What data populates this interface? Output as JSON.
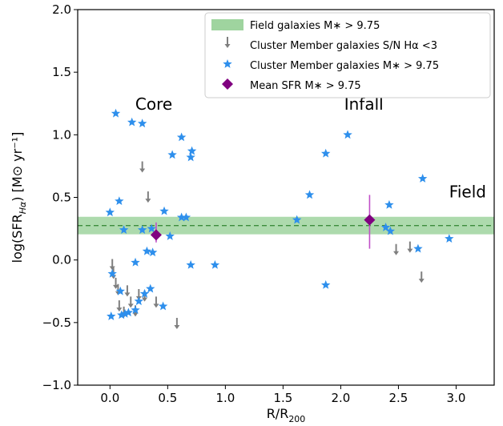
{
  "chart_data": {
    "type": "scatter",
    "xlabel": "R/R",
    "xlabel_sub": "200",
    "ylabel": "log(SFR",
    "ylabel_sub": "Hα",
    "ylabel_units": ") [M⊙ yr⁻¹]",
    "xlim": [
      -0.28,
      3.33
    ],
    "ylim": [
      -1.0,
      2.0
    ],
    "xticks": [
      0.0,
      0.5,
      1.0,
      1.5,
      2.0,
      2.5,
      3.0
    ],
    "xtick_labels": [
      "0.0",
      "0.5",
      "1.0",
      "1.5",
      "2.0",
      "2.5",
      "3.0"
    ],
    "yticks": [
      -1.0,
      -0.5,
      0.0,
      0.5,
      1.0,
      1.5,
      2.0
    ],
    "ytick_labels": [
      "−1.0",
      "−0.5",
      "0.0",
      "0.5",
      "1.0",
      "1.5",
      "2.0"
    ],
    "grid": false,
    "legend_position": "top-right",
    "region_labels": [
      {
        "text": "Core",
        "x": 0.38,
        "y": 1.2
      },
      {
        "text": "Infall",
        "x": 2.2,
        "y": 1.2
      },
      {
        "text": "Field",
        "x": 3.1,
        "y": 0.5
      }
    ],
    "series": [
      {
        "name": "Field galaxies M∗ > 9.75",
        "kind": "band",
        "color": "#9fd49f",
        "y_center": 0.275,
        "y_low": 0.205,
        "y_high": 0.345,
        "line_color": "#3c8c3c"
      },
      {
        "name": "Cluster Member galaxies S/N Hα <3",
        "kind": "upper_limit",
        "color": "#7f7f7f",
        "points": [
          {
            "x": 0.02,
            "y": -0.05
          },
          {
            "x": 0.03,
            "y": -0.12
          },
          {
            "x": 0.05,
            "y": -0.2
          },
          {
            "x": 0.07,
            "y": -0.25
          },
          {
            "x": 0.08,
            "y": -0.38
          },
          {
            "x": 0.12,
            "y": -0.43
          },
          {
            "x": 0.15,
            "y": -0.26
          },
          {
            "x": 0.18,
            "y": -0.35
          },
          {
            "x": 0.22,
            "y": -0.42
          },
          {
            "x": 0.25,
            "y": -0.29
          },
          {
            "x": 0.28,
            "y": 0.73
          },
          {
            "x": 0.3,
            "y": -0.3
          },
          {
            "x": 0.33,
            "y": 0.49
          },
          {
            "x": 0.4,
            "y": -0.35
          },
          {
            "x": 0.58,
            "y": -0.52
          },
          {
            "x": 2.48,
            "y": 0.07
          },
          {
            "x": 2.6,
            "y": 0.09
          },
          {
            "x": 2.7,
            "y": -0.15
          }
        ]
      },
      {
        "name": "Cluster Member galaxies M∗ > 9.75",
        "kind": "star",
        "color": "#2e8fec",
        "points": [
          {
            "x": 0.05,
            "y": 1.17
          },
          {
            "x": 0.19,
            "y": 1.1
          },
          {
            "x": 0.28,
            "y": 1.09
          },
          {
            "x": 0.62,
            "y": 0.98
          },
          {
            "x": 0.71,
            "y": 0.87
          },
          {
            "x": 0.54,
            "y": 0.84
          },
          {
            "x": 0.7,
            "y": 0.82
          },
          {
            "x": 0.08,
            "y": 0.47
          },
          {
            "x": 0.0,
            "y": 0.38
          },
          {
            "x": 0.47,
            "y": 0.39
          },
          {
            "x": 0.62,
            "y": 0.34
          },
          {
            "x": 0.66,
            "y": 0.34
          },
          {
            "x": 0.12,
            "y": 0.24
          },
          {
            "x": 0.28,
            "y": 0.24
          },
          {
            "x": 0.36,
            "y": 0.25
          },
          {
            "x": 0.52,
            "y": 0.19
          },
          {
            "x": 0.32,
            "y": 0.07
          },
          {
            "x": 0.37,
            "y": 0.06
          },
          {
            "x": 0.22,
            "y": -0.02
          },
          {
            "x": 0.7,
            "y": -0.04
          },
          {
            "x": 0.91,
            "y": -0.04
          },
          {
            "x": 0.02,
            "y": -0.11
          },
          {
            "x": 0.35,
            "y": -0.23
          },
          {
            "x": 0.09,
            "y": -0.25
          },
          {
            "x": 0.3,
            "y": -0.27
          },
          {
            "x": 0.25,
            "y": -0.33
          },
          {
            "x": 0.46,
            "y": -0.37
          },
          {
            "x": 0.22,
            "y": -0.4
          },
          {
            "x": 0.16,
            "y": -0.42
          },
          {
            "x": 0.13,
            "y": -0.43
          },
          {
            "x": 0.1,
            "y": -0.44
          },
          {
            "x": 0.01,
            "y": -0.45
          },
          {
            "x": 2.06,
            "y": 1.0
          },
          {
            "x": 1.87,
            "y": 0.85
          },
          {
            "x": 1.73,
            "y": 0.52
          },
          {
            "x": 1.62,
            "y": 0.32
          },
          {
            "x": 2.42,
            "y": 0.44
          },
          {
            "x": 2.39,
            "y": 0.26
          },
          {
            "x": 2.43,
            "y": 0.23
          },
          {
            "x": 1.87,
            "y": -0.2
          },
          {
            "x": 2.71,
            "y": 0.65
          },
          {
            "x": 2.67,
            "y": 0.09
          },
          {
            "x": 2.94,
            "y": 0.17
          }
        ]
      },
      {
        "name": "Mean SFR M∗ > 9.75",
        "kind": "mean",
        "color": "#800080",
        "errorbar_color": "#c050c8",
        "points": [
          {
            "x": 0.4,
            "y": 0.2,
            "yerr_low": 0.06,
            "yerr_high": 0.1
          },
          {
            "x": 2.25,
            "y": 0.32,
            "yerr_low": 0.23,
            "yerr_high": 0.2
          }
        ]
      }
    ]
  }
}
